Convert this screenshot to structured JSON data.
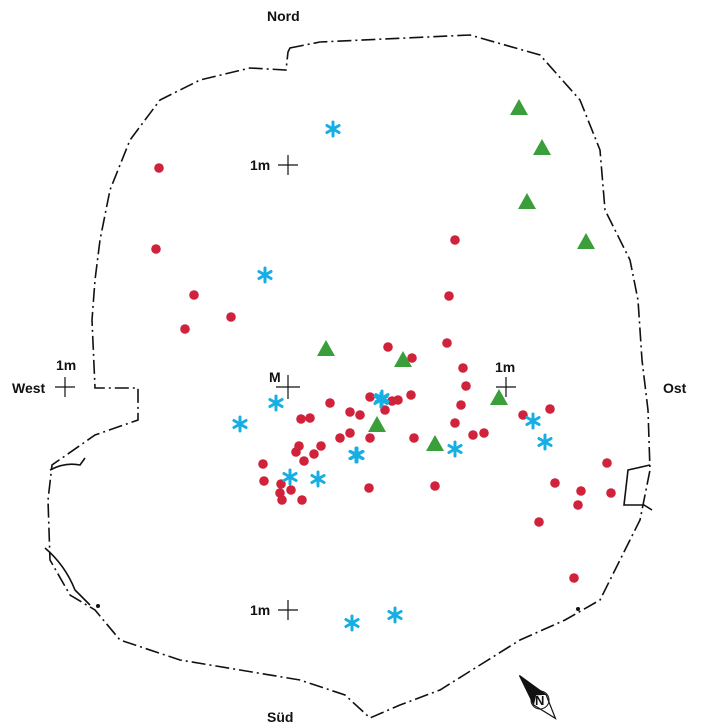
{
  "directions": {
    "north": "Nord",
    "south": "Süd",
    "west": "West",
    "east": "Ost"
  },
  "grid_labels": {
    "top": "1m",
    "left": "1m",
    "center": "M",
    "right": "1m",
    "bottom": "1m"
  },
  "colors": {
    "circle": "#d0223a",
    "asterisk": "#17aee3",
    "triangle": "#3a9e3a",
    "outline": "#111111"
  },
  "legend_markers": [
    "red-circle",
    "blue-asterisk",
    "green-triangle"
  ],
  "marker_counts": {
    "circles": 53,
    "asterisks": 15,
    "triangles": 9
  }
}
